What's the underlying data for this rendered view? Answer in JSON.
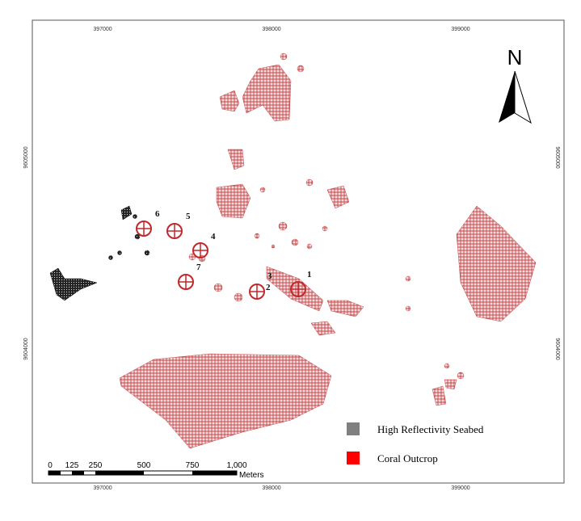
{
  "map": {
    "grid_labels": {
      "top": [
        "397000",
        "398000",
        "399000"
      ],
      "bottom": [
        "397000",
        "398000",
        "399000"
      ],
      "left": [
        "9605000",
        "9604000"
      ],
      "right": [
        "9605000",
        "9604000"
      ]
    },
    "north": "N",
    "points": [
      "1",
      "2",
      "3",
      "4",
      "5",
      "6",
      "7"
    ],
    "legend": [
      "High Reflectivity Seabed",
      "Coral Outcrop"
    ],
    "scale": {
      "ticks": [
        "0",
        "125",
        "250",
        "500",
        "750",
        "1,000"
      ],
      "unit": "Meters"
    }
  }
}
